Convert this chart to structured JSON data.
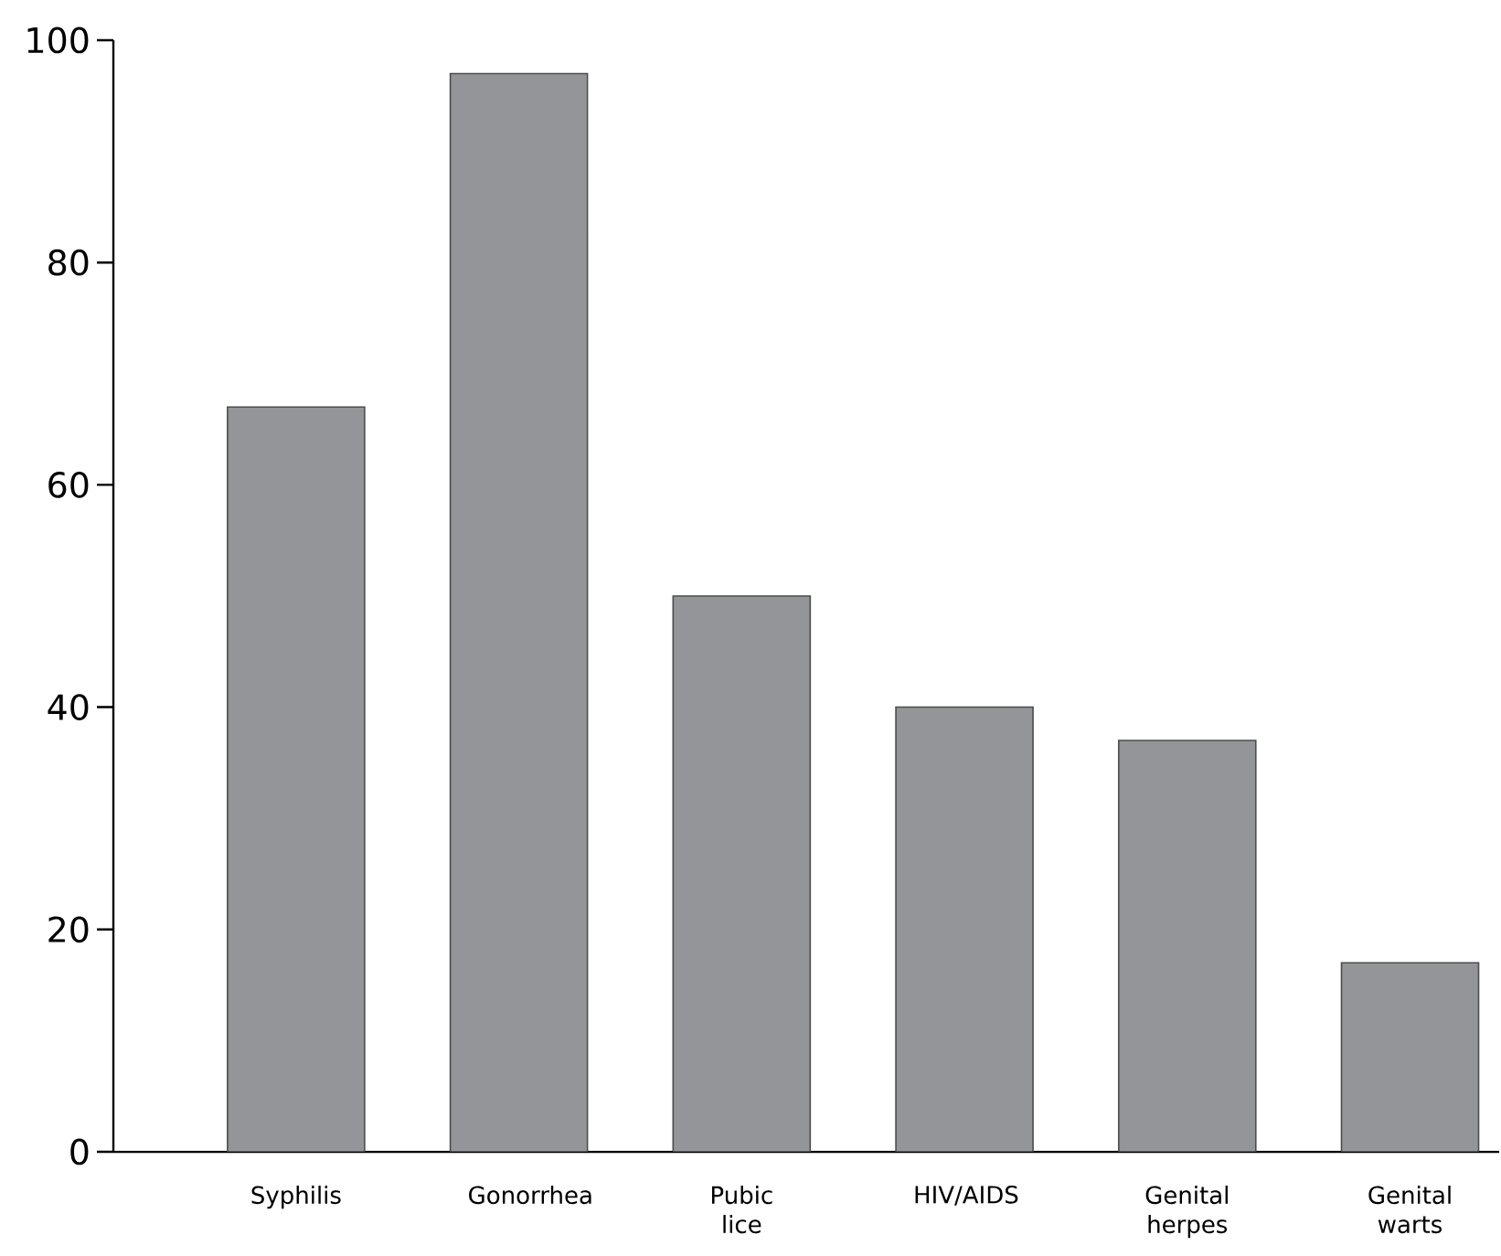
{
  "chart_data": {
    "type": "bar",
    "categories": [
      "Syphilis",
      "Gonorrhea",
      "Pubic lice",
      "HIV/AIDS",
      "Genital herpes",
      "Genital warts"
    ],
    "values": [
      67,
      97,
      50,
      40,
      37,
      17
    ],
    "color": "#939598",
    "ylim": [
      0,
      100
    ],
    "yticks": [
      0,
      20,
      40,
      60,
      80,
      100
    ],
    "grid": false
  }
}
